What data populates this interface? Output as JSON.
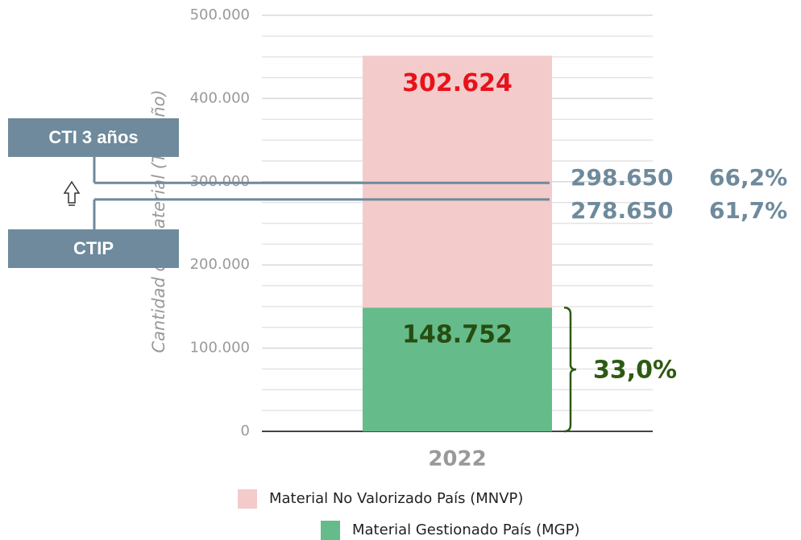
{
  "chart_data": {
    "type": "bar",
    "stacked": true,
    "y_axis_label": "Cantidad de material (Ton/año)",
    "categories": [
      "2022"
    ],
    "series": [
      {
        "name": "Material Gestionado País (MGP)",
        "color": "#66bb8a",
        "label_color": "#264d10",
        "values": [
          148752
        ],
        "value_labels": [
          "148.752"
        ]
      },
      {
        "name": "Material No Valorizado País (MNVP)",
        "color": "#f3cbcb",
        "label_color": "#e8121b",
        "values": [
          302624
        ],
        "value_labels": [
          "302.624"
        ]
      }
    ],
    "ylim": [
      0,
      500000
    ],
    "yticks": [
      0,
      {
        "value": 100000,
        "label": "100.000"
      },
      {
        "value": 200000,
        "label": "200.000"
      },
      {
        "value": 300000,
        "label": "300.000"
      },
      {
        "value": 400000,
        "label": "400.000"
      },
      {
        "value": 500000,
        "label": "500.000"
      }
    ],
    "minor_yticks": [
      25000,
      50000,
      75000,
      125000,
      150000,
      175000,
      225000,
      250000,
      275000,
      325000,
      350000,
      375000,
      425000,
      450000,
      475000
    ],
    "grid": true,
    "reference_lines": [
      {
        "box": "CTI 3 años",
        "value": 298650,
        "value_label": "298.650",
        "percent_label": "66,2%",
        "color": "#6e8a9c"
      },
      {
        "box": "CTIP",
        "value": 278650,
        "value_label": "278.650",
        "percent_label": "61,7%",
        "color": "#6e8a9c"
      }
    ],
    "brace_label": "33,0%",
    "brace_color": "#2d5a12"
  }
}
